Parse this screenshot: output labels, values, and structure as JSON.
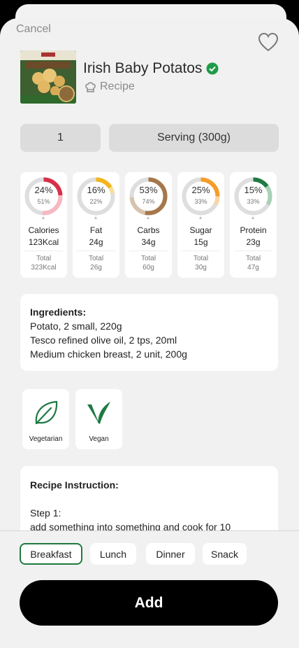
{
  "header": {
    "cancel_label": "Cancel"
  },
  "product": {
    "title": "Irish Baby Potatos",
    "type_label": "Recipe"
  },
  "serving": {
    "quantity": "1",
    "unit": "Serving (300g)"
  },
  "nutrients": [
    {
      "name": "Calories",
      "amount": "123Kcal",
      "percent": "24%",
      "sub_percent": "51%",
      "total_label": "Total",
      "total": "323Kcal",
      "color": "#d8304a",
      "track": "#f6b8c1",
      "fill": 0.24,
      "sub_fill": 0.51
    },
    {
      "name": "Fat",
      "amount": "24g",
      "percent": "16%",
      "sub_percent": "22%",
      "total_label": "Total",
      "total": "26g",
      "color": "#f2b51c",
      "track": "#f8dd95",
      "fill": 0.16,
      "sub_fill": 0.22
    },
    {
      "name": "Carbs",
      "amount": "34g",
      "percent": "53%",
      "sub_percent": "74%",
      "total_label": "Total",
      "total": "60g",
      "color": "#a5784c",
      "track": "#d7c3ad",
      "fill": 0.53,
      "sub_fill": 0.74
    },
    {
      "name": "Sugar",
      "amount": "15g",
      "percent": "25%",
      "sub_percent": "33%",
      "total_label": "Total",
      "total": "30g",
      "color": "#f59d2a",
      "track": "#fbd4a3",
      "fill": 0.25,
      "sub_fill": 0.33
    },
    {
      "name": "Protein",
      "amount": "23g",
      "percent": "15%",
      "sub_percent": "33%",
      "total_label": "Total",
      "total": "47g",
      "color": "#1e7a44",
      "track": "#a8d1b5",
      "fill": 0.15,
      "sub_fill": 0.33
    }
  ],
  "ingredients": {
    "heading": "Ingredients:",
    "items": [
      "Potato, 2 small, 220g",
      "Tesco refined olive oil, 2 tps, 20ml",
      "Medium chicken breast, 2 unit, 200g"
    ]
  },
  "diet_tags": [
    {
      "label": "Vegetarian",
      "icon": "leaf-icon"
    },
    {
      "label": "Vegan",
      "icon": "sprout-icon"
    }
  ],
  "instructions": {
    "heading": "Recipe Instruction:",
    "step_label": "Step 1:",
    "step_text": "add something into something and cook for 10"
  },
  "meal_tabs": [
    {
      "label": "Breakfast",
      "active": true
    },
    {
      "label": "Lunch",
      "active": false
    },
    {
      "label": "Dinner",
      "active": false
    },
    {
      "label": "Snack",
      "active": false
    }
  ],
  "add_label": "Add",
  "colors": {
    "accent": "#1f7a3f",
    "primary_button": "#000000"
  }
}
